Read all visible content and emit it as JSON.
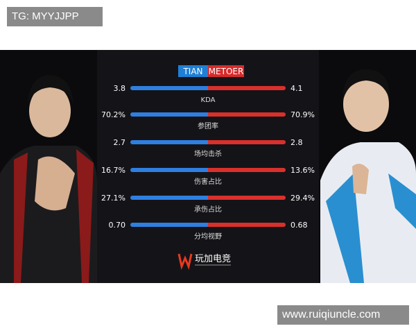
{
  "watermark_top": "TG: MYYJJPP",
  "watermark_bottom": "www.ruiqiuncle.com",
  "header": {
    "left_team": "TIAN",
    "right_team": "METOER"
  },
  "rows": [
    {
      "left": "3.8",
      "label": "KDA",
      "right": "4.1"
    },
    {
      "left": "70.2%",
      "label": "参团率",
      "right": "70.9%"
    },
    {
      "left": "2.7",
      "label": "场均击杀",
      "right": "2.8"
    },
    {
      "left": "16.7%",
      "label": "伤害占比",
      "right": "13.6%"
    },
    {
      "left": "27.1%",
      "label": "承伤占比",
      "right": "29.4%"
    },
    {
      "left": "0.70",
      "label": "分均视野",
      "right": "0.68"
    }
  ],
  "logo": "玩加电竞"
}
